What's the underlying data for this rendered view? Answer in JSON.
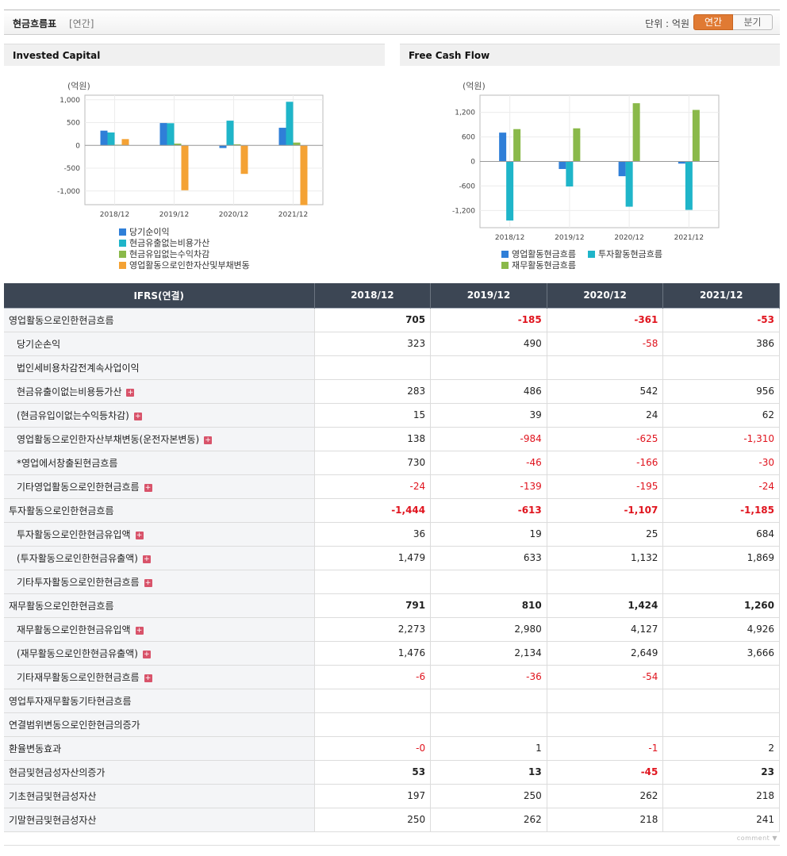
{
  "header": {
    "title": "현금흐름표",
    "subtitle": "[연간]",
    "unit": "단위 : 억원",
    "tab_annual": "연간",
    "tab_quarter": "분기"
  },
  "panels": {
    "left_title": "Invested Capital",
    "right_title": "Free Cash Flow"
  },
  "colors": {
    "blue": "#2f7fd8",
    "teal": "#1fb5c9",
    "green": "#8ab94a",
    "orange": "#f4a234",
    "negative": "#e0141e"
  },
  "chart_data": [
    {
      "type": "bar",
      "title": "Invested Capital",
      "ylabel": "(억원)",
      "categories": [
        "2018/12",
        "2019/12",
        "2020/12",
        "2021/12"
      ],
      "ylim": [
        -1300,
        1100
      ],
      "yticks": [
        1000,
        500,
        0,
        -500,
        -1000
      ],
      "ytick_labels": [
        "1,000",
        "500",
        "0",
        "-500",
        "-1,000"
      ],
      "grid": true,
      "legend": "bottom",
      "series": [
        {
          "name": "당기순이익",
          "color": "#2f7fd8",
          "values": [
            323,
            490,
            -58,
            386
          ]
        },
        {
          "name": "현금유출없는비용가산",
          "color": "#1fb5c9",
          "values": [
            283,
            486,
            542,
            956
          ]
        },
        {
          "name": "현금유입없는수익차감",
          "color": "#8ab94a",
          "values": [
            15,
            39,
            24,
            62
          ]
        },
        {
          "name": "영업활동으로인한자산및부채변동",
          "color": "#f4a234",
          "values": [
            138,
            -984,
            -625,
            -1310
          ]
        }
      ]
    },
    {
      "type": "bar",
      "title": "Free Cash Flow",
      "ylabel": "(억원)",
      "categories": [
        "2018/12",
        "2019/12",
        "2020/12",
        "2021/12"
      ],
      "ylim": [
        -1620,
        1620
      ],
      "yticks": [
        1200,
        600,
        0,
        -600,
        -1200
      ],
      "ytick_labels": [
        "1,200",
        "600",
        "0",
        "-600",
        "-1,200"
      ],
      "grid": true,
      "legend": "bottom",
      "series": [
        {
          "name": "영업활동현금흐름",
          "color": "#2f7fd8",
          "values": [
            705,
            -185,
            -361,
            -53
          ]
        },
        {
          "name": "투자활동현금흐름",
          "color": "#1fb5c9",
          "values": [
            -1444,
            -613,
            -1107,
            -1185
          ]
        },
        {
          "name": "재무활동현금흐름",
          "color": "#8ab94a",
          "values": [
            791,
            810,
            1424,
            1260
          ]
        }
      ]
    }
  ],
  "table": {
    "corner": "IFRS(연결)",
    "columns": [
      "2018/12",
      "2019/12",
      "2020/12",
      "2021/12"
    ],
    "rows": [
      {
        "label": "영업활동으로인한현금흐름",
        "main": true,
        "values": [
          "705",
          "-185",
          "-361",
          "-53"
        ]
      },
      {
        "label": "당기순손익",
        "values": [
          "323",
          "490",
          "-58",
          "386"
        ]
      },
      {
        "label": "법인세비용차감전계속사업이익",
        "values": [
          "",
          "",
          "",
          ""
        ]
      },
      {
        "label": "현금유출이없는비용등가산",
        "plus": true,
        "values": [
          "283",
          "486",
          "542",
          "956"
        ]
      },
      {
        "label": "(현금유입이없는수익등차감)",
        "plus": true,
        "values": [
          "15",
          "39",
          "24",
          "62"
        ]
      },
      {
        "label": "영업활동으로인한자산부채변동(운전자본변동)",
        "plus": true,
        "values": [
          "138",
          "-984",
          "-625",
          "-1,310"
        ]
      },
      {
        "label": "*영업에서창출된현금흐름",
        "values": [
          "730",
          "-46",
          "-166",
          "-30"
        ]
      },
      {
        "label": "기타영업활동으로인한현금흐름",
        "plus": true,
        "values": [
          "-24",
          "-139",
          "-195",
          "-24"
        ]
      },
      {
        "label": "투자활동으로인한현금흐름",
        "main": true,
        "values": [
          "-1,444",
          "-613",
          "-1,107",
          "-1,185"
        ]
      },
      {
        "label": "투자활동으로인한현금유입액",
        "plus": true,
        "values": [
          "36",
          "19",
          "25",
          "684"
        ]
      },
      {
        "label": "(투자활동으로인한현금유출액)",
        "plus": true,
        "values": [
          "1,479",
          "633",
          "1,132",
          "1,869"
        ]
      },
      {
        "label": "기타투자활동으로인한현금흐름",
        "plus": true,
        "values": [
          "",
          "",
          "",
          ""
        ]
      },
      {
        "label": "재무활동으로인한현금흐름",
        "main": true,
        "values": [
          "791",
          "810",
          "1,424",
          "1,260"
        ]
      },
      {
        "label": "재무활동으로인한현금유입액",
        "plus": true,
        "values": [
          "2,273",
          "2,980",
          "4,127",
          "4,926"
        ]
      },
      {
        "label": "(재무활동으로인한현금유출액)",
        "plus": true,
        "values": [
          "1,476",
          "2,134",
          "2,649",
          "3,666"
        ]
      },
      {
        "label": "기타재무활동으로인한현금흐름",
        "plus": true,
        "values": [
          "-6",
          "-36",
          "-54",
          ""
        ]
      },
      {
        "label": "영업투자재무활동기타현금흐름",
        "top": true,
        "values": [
          "",
          "",
          "",
          ""
        ]
      },
      {
        "label": "연결범위변동으로인한현금의증가",
        "top": true,
        "values": [
          "",
          "",
          "",
          ""
        ]
      },
      {
        "label": "환율변동효과",
        "top": true,
        "values": [
          "-0",
          "1",
          "-1",
          "2"
        ]
      },
      {
        "label": "현금및현금성자산의증가",
        "main": true,
        "values": [
          "53",
          "13",
          "-45",
          "23"
        ]
      },
      {
        "label": "기초현금및현금성자산",
        "top": true,
        "values": [
          "197",
          "250",
          "262",
          "218"
        ]
      },
      {
        "label": "기말현금및현금성자산",
        "top": true,
        "values": [
          "250",
          "262",
          "218",
          "241"
        ]
      }
    ]
  },
  "footer": {
    "comment": "comment ▼"
  }
}
